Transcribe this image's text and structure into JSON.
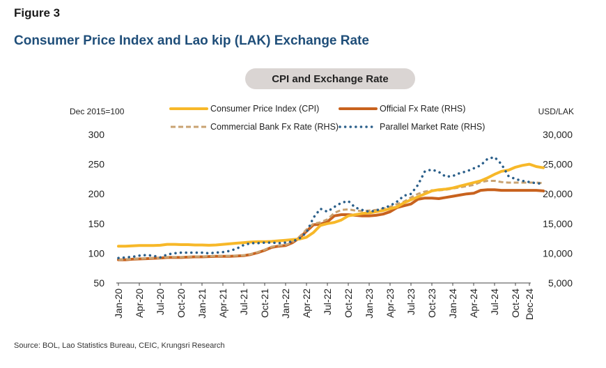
{
  "figure_label": "Figure 3",
  "title": "Consumer Price Index and Lao kip (LAK) Exchange Rate",
  "subtitle": "CPI and Exchange Rate",
  "source": "Source: BOL, Lao Statistics Bureau, CEIC, Krungsri Research",
  "chart_data": {
    "type": "line",
    "left_axis_label": "Dec 2015=100",
    "right_axis_label": "USD/LAK",
    "ylim_left": [
      50,
      300
    ],
    "ylim_right": [
      5000,
      30000
    ],
    "yticks_left": [
      "300",
      "250",
      "200",
      "150",
      "100",
      "50"
    ],
    "yticks_right": [
      "30,000",
      "25,000",
      "20,000",
      "15,000",
      "10,000",
      "5,000"
    ],
    "x_tick_labels": [
      "Jan-20",
      "Apr-20",
      "Jul-20",
      "Oct-20",
      "Jan-21",
      "Apr-21",
      "Jul-21",
      "Oct-21",
      "Jan-22",
      "Apr-22",
      "Jul-22",
      "Oct-22",
      "Jan-23",
      "Apr-23",
      "Jul-23",
      "Oct-23",
      "Jan-24",
      "Apr-24",
      "Jul-24",
      "Oct-24",
      "Dec-24"
    ],
    "x_start": "2020-01",
    "x_end": "2024-12",
    "grid": false,
    "legend_position": "top",
    "series": [
      {
        "name": "Consumer Price Index (CPI)",
        "axis": "left",
        "color": "#f7b829",
        "style": "solid",
        "values": [
          112,
          112,
          112.5,
          113,
          113,
          113,
          113.5,
          115,
          115,
          114.5,
          114.5,
          114,
          114,
          113.5,
          114,
          115,
          116,
          117,
          118,
          119,
          119.5,
          119.5,
          120,
          121,
          122,
          123,
          124,
          127,
          135,
          147,
          150,
          152,
          156,
          163,
          165,
          167,
          168,
          170,
          172,
          175,
          178,
          185,
          190,
          195,
          200,
          205,
          207,
          208,
          210,
          213,
          216,
          219,
          222,
          227,
          233,
          238,
          240,
          245,
          248,
          250,
          246,
          244
        ]
      },
      {
        "name": "Official Fx Rate (RHS)",
        "axis": "right",
        "color": "#c8621e",
        "style": "solid",
        "values": [
          8900,
          8900,
          9000,
          9050,
          9100,
          9150,
          9200,
          9300,
          9300,
          9300,
          9350,
          9400,
          9400,
          9450,
          9500,
          9500,
          9500,
          9550,
          9600,
          9800,
          10100,
          10500,
          11000,
          11200,
          11300,
          11800,
          12600,
          13700,
          14800,
          14900,
          15300,
          16300,
          16500,
          16500,
          16400,
          16300,
          16300,
          16400,
          16600,
          17000,
          17700,
          18000,
          18300,
          19100,
          19300,
          19300,
          19200,
          19400,
          19600,
          19800,
          20000,
          20100,
          20600,
          20700,
          20700,
          20600,
          20600,
          20600,
          20600,
          20600,
          20600,
          20500
        ]
      },
      {
        "name": "Commercial Bank Fx Rate (RHS)",
        "axis": "right",
        "color": "#c9a372",
        "style": "dashed",
        "values": [
          8900,
          8950,
          9050,
          9100,
          9150,
          9200,
          9200,
          9350,
          9350,
          9350,
          9400,
          9450,
          9450,
          9500,
          9550,
          9550,
          9550,
          9600,
          9650,
          9850,
          10200,
          10600,
          11100,
          11300,
          11400,
          11900,
          12800,
          14000,
          15000,
          15200,
          15700,
          16800,
          17300,
          17400,
          17200,
          17100,
          17200,
          17300,
          17500,
          17800,
          18300,
          18700,
          19400,
          20000,
          20400,
          20600,
          20600,
          20700,
          20900,
          21100,
          21300,
          21500,
          22000,
          22200,
          22200,
          22000,
          21900,
          21900,
          21900,
          21900,
          21900,
          21800
        ]
      },
      {
        "name": "Parallel Market Rate (RHS)",
        "axis": "right",
        "color": "#2b5f8a",
        "style": "dotted",
        "values": [
          9200,
          9300,
          9400,
          9600,
          9700,
          9600,
          9300,
          9800,
          10000,
          10100,
          10100,
          10100,
          10100,
          10000,
          10100,
          10200,
          10400,
          10800,
          11400,
          11700,
          11700,
          11800,
          11800,
          11700,
          11800,
          12000,
          12500,
          13500,
          16000,
          17500,
          17000,
          17800,
          18500,
          18800,
          17700,
          17300,
          17000,
          17200,
          17600,
          18000,
          18700,
          19700,
          20000,
          21500,
          23800,
          24100,
          23700,
          22900,
          23000,
          23500,
          23800,
          24300,
          24800,
          25900,
          26200,
          25000,
          23000,
          22500,
          22200,
          22000,
          21800,
          21700
        ]
      }
    ]
  }
}
